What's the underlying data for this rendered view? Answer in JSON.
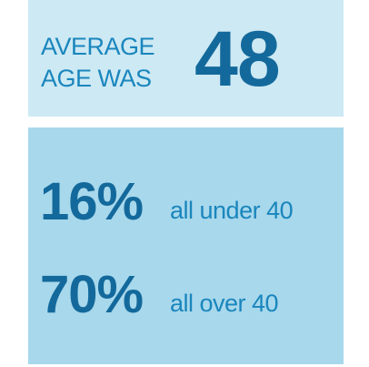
{
  "header": {
    "lines": [
      "AVERAGE",
      "AGE WAS"
    ],
    "value": "48"
  },
  "stats": [
    {
      "value": "16%",
      "label": "all under 40"
    },
    {
      "value": "70%",
      "label": "all over 40"
    }
  ]
}
